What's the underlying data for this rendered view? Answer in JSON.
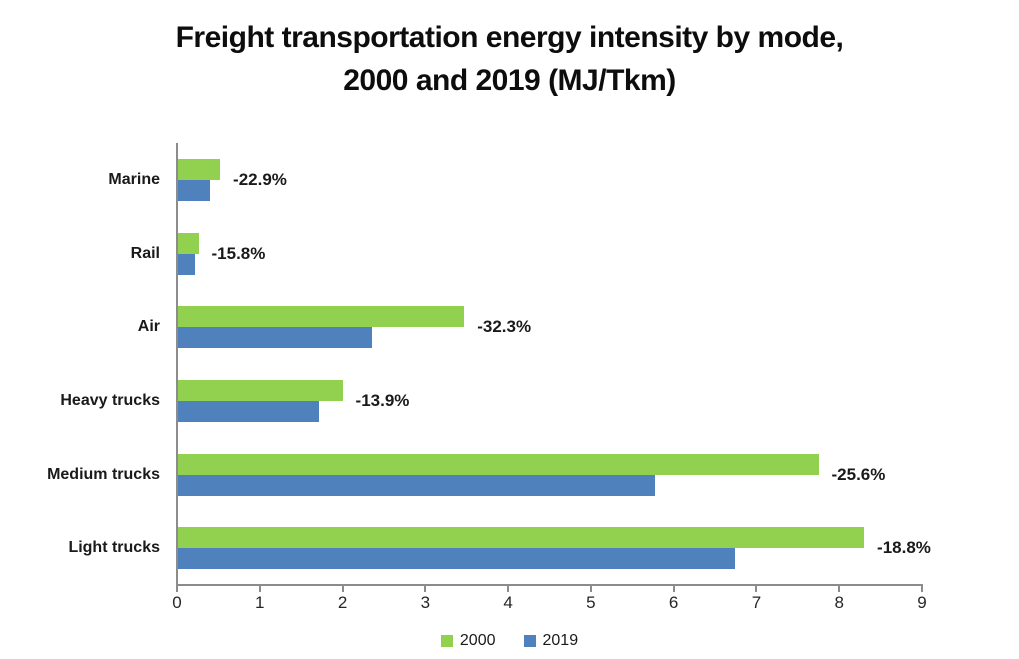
{
  "chart_data": {
    "type": "bar",
    "orientation": "horizontal",
    "title": "Freight transportation energy intensity by mode, 2000 and 2019 (MJ/Tkm)",
    "title_lines": [
      "Freight transportation energy intensity by mode,",
      "2000 and 2019 (MJ/Tkm)"
    ],
    "categories": [
      "Marine",
      "Rail",
      "Air",
      "Heavy trucks",
      "Medium trucks",
      "Light trucks"
    ],
    "series": [
      {
        "name": "2000",
        "color": "#92D050",
        "values": [
          0.52,
          0.26,
          3.47,
          2.0,
          7.75,
          8.3
        ]
      },
      {
        "name": "2019",
        "color": "#4F81BD",
        "values": [
          0.4,
          0.22,
          2.35,
          1.72,
          5.77,
          6.74
        ]
      }
    ],
    "change_labels": [
      "-22.9%",
      "-15.8%",
      "-32.3%",
      "-13.9%",
      "-25.6%",
      "-18.8%"
    ],
    "x_axis": {
      "min": 0,
      "max": 9,
      "tick_step": 1,
      "tick_labels": [
        "0",
        "1",
        "2",
        "3",
        "4",
        "5",
        "6",
        "7",
        "8",
        "9"
      ]
    },
    "legend": {
      "position": "bottom",
      "entries": [
        "2000",
        "2019"
      ]
    },
    "grid": false,
    "axis_color": "#8c8c8c",
    "background_color": "#ffffff"
  }
}
